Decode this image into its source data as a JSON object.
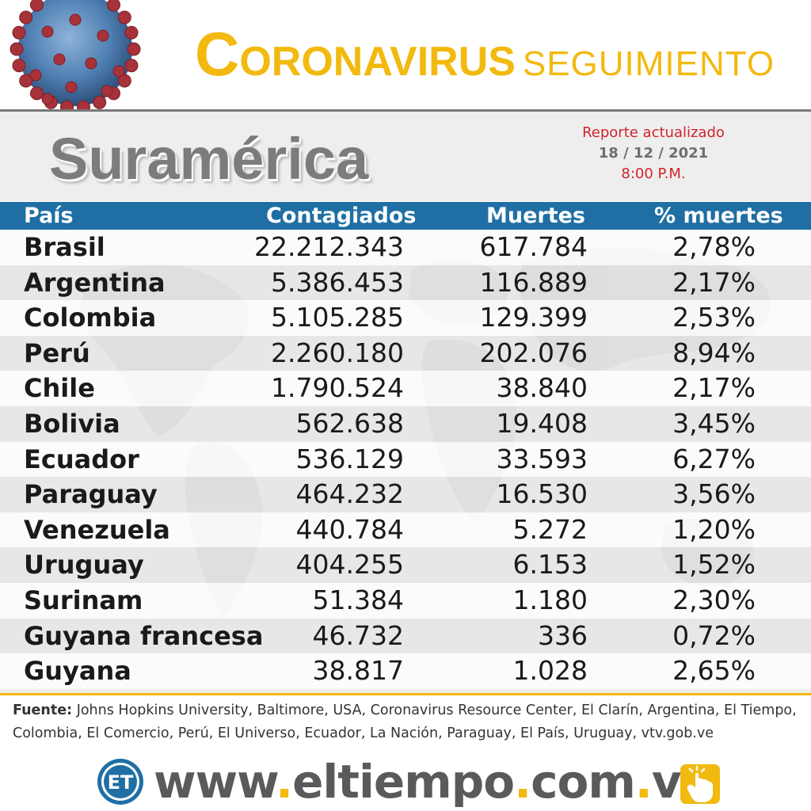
{
  "header": {
    "headline_cap": "C",
    "headline_rest": "ORONAVIRUS",
    "headline_second": "SEGUIMIENTO"
  },
  "panel": {
    "region_title": "Suramérica",
    "report_label": "Reporte actualizado",
    "report_date": "18 / 12 / 2021",
    "report_time": "8:00 P.M."
  },
  "table": {
    "columns": {
      "country": "País",
      "cases": "Contagiados",
      "deaths": "Muertes",
      "pct": "% muertes"
    },
    "rows": [
      {
        "country": "Brasil",
        "cases": "22.212.343",
        "deaths": "617.784",
        "pct": "2,78%"
      },
      {
        "country": "Argentina",
        "cases": "5.386.453",
        "deaths": "116.889",
        "pct": "2,17%"
      },
      {
        "country": "Colombia",
        "cases": "5.105.285",
        "deaths": "129.399",
        "pct": "2,53%"
      },
      {
        "country": "Perú",
        "cases": "2.260.180",
        "deaths": "202.076",
        "pct": "8,94%"
      },
      {
        "country": "Chile",
        "cases": "1.790.524",
        "deaths": "38.840",
        "pct": "2,17%"
      },
      {
        "country": "Bolivia",
        "cases": "562.638",
        "deaths": "19.408",
        "pct": "3,45%"
      },
      {
        "country": "Ecuador",
        "cases": "536.129",
        "deaths": "33.593",
        "pct": "6,27%"
      },
      {
        "country": "Paraguay",
        "cases": "464.232",
        "deaths": "16.530",
        "pct": "3,56%"
      },
      {
        "country": "Venezuela",
        "cases": "440.784",
        "deaths": "5.272",
        "pct": "1,20%"
      },
      {
        "country": "Uruguay",
        "cases": "404.255",
        "deaths": "6.153",
        "pct": "1,52%"
      },
      {
        "country": "Surinam",
        "cases": "51.384",
        "deaths": "1.180",
        "pct": "2,30%"
      },
      {
        "country": "Guyana francesa",
        "cases": "46.732",
        "deaths": "336",
        "pct": "0,72%"
      },
      {
        "country": "Guyana",
        "cases": "38.817",
        "deaths": "1.028",
        "pct": "2,65%"
      }
    ]
  },
  "footer": {
    "source_label": "Fuente:",
    "source_text": "Johns Hopkins University, Baltimore, USA, Coronavirus Resource Center,  El Clarín, Argentina, El Tiempo, Colombia, El Comercio, Perú, El Universo, Ecuador, La Nación, Paraguay, El País, Uruguay, vtv.gob.ve",
    "logo_text": "ET",
    "website_parts": [
      "www",
      ".",
      "eltiempo",
      ".",
      "com",
      ".",
      "ve"
    ]
  },
  "colors": {
    "accent_yellow": "#f2b90f",
    "header_blue": "#1f6fa4",
    "report_red": "#d2232a",
    "title_gray": "#7c7c7c",
    "virus_red": "#a8323a",
    "virus_blue": "#4f7fb3"
  },
  "icons": {
    "virus": "coronavirus-illustration",
    "logo": "et-logo-icon",
    "click": "hand-click-icon"
  }
}
